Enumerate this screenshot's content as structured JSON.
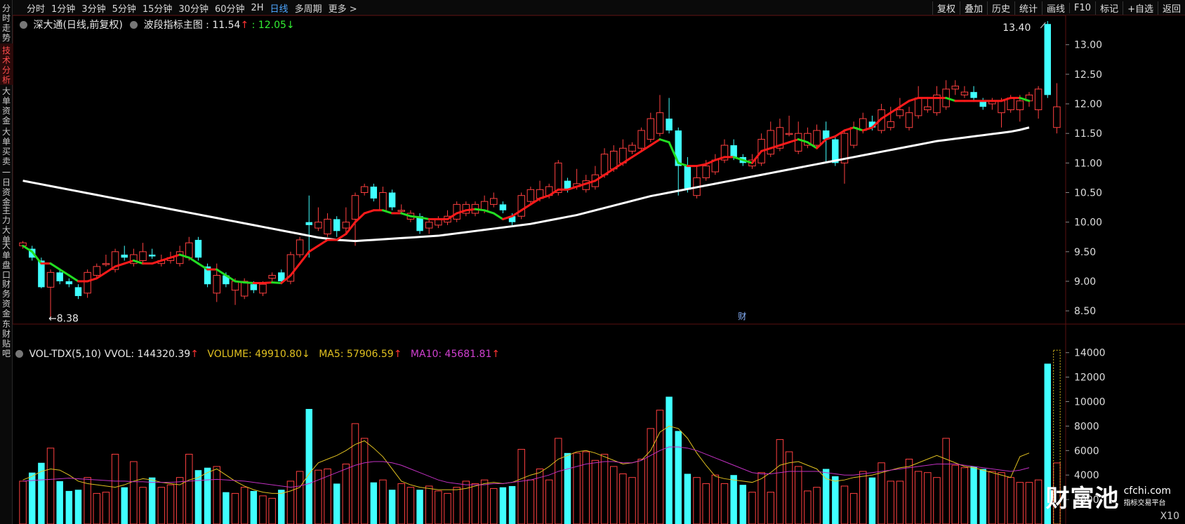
{
  "sidebar": {
    "items": [
      {
        "label": "分时走势",
        "active": false
      },
      {
        "label": "技术分析",
        "active": true
      },
      {
        "label": "大单资金",
        "active": false
      },
      {
        "label": "大单买卖",
        "active": false
      },
      {
        "label": "一日资金",
        "active": false
      },
      {
        "label": "主力大单",
        "active": false
      },
      {
        "label": "大单盘口",
        "active": false
      },
      {
        "label": "财务资金",
        "active": false
      },
      {
        "label": "东财贴吧",
        "active": false
      }
    ]
  },
  "toolbar": {
    "periods": [
      "分时",
      "1分钟",
      "3分钟",
      "5分钟",
      "15分钟",
      "30分钟",
      "60分钟",
      "2H",
      "日线",
      "多周期",
      "更多 >"
    ],
    "active_period": "日线",
    "tools": [
      "复权",
      "叠加",
      "历史",
      "统计",
      "画线",
      "F10",
      "标记",
      "+自选",
      "返回"
    ]
  },
  "main_legend": {
    "stock": "深大通(日线,前复权)",
    "indicator": "波段指标主图 :",
    "value1": "11.54",
    "arrow1": "↑",
    "value2": ": 12.05",
    "arrow2": "↓"
  },
  "volume_legend": {
    "name": "VOL-TDX(5,10)",
    "vvol": "VVOL: 144320.39",
    "vvol_arrow": "↑",
    "volume": "VOLUME: 49910.80",
    "volume_arrow": "↓",
    "ma5": "MA5: 57906.59",
    "ma5_arrow": "↑",
    "ma10": "MA10: 45681.81",
    "ma10_arrow": "↑"
  },
  "price_axis": {
    "ticks": [
      "13.00",
      "12.50",
      "12.00",
      "11.50",
      "11.00",
      "10.50",
      "10.00",
      "9.50",
      "9.00",
      "8.50"
    ]
  },
  "volume_axis": {
    "ticks": [
      "14000",
      "12000",
      "10000",
      "8000",
      "6000",
      "4000",
      "2000"
    ]
  },
  "annotations": {
    "high_label": "13.40",
    "low_label": "←8.38",
    "finance_marker": "财"
  },
  "watermark": {
    "main": "财富池",
    "url": "cfchi.com",
    "slogan": "指标交易平台"
  },
  "volume_unit": "X10",
  "colors": {
    "up": "#ff4040",
    "down": "#40ffff",
    "wave_up": "#ff1a1a",
    "wave_down": "#22dd22",
    "long_ma": "#ffffff",
    "vol_ma5": "#e0c020",
    "vol_ma10": "#c030c0",
    "grid": "#5a1010"
  },
  "chart_data": {
    "type": "candlestick",
    "price_range": [
      8.3,
      13.4
    ],
    "volume_range": [
      0,
      14500
    ],
    "candles": [
      [
        9.6,
        9.65,
        9.55,
        9.68,
        3500
      ],
      [
        9.55,
        9.4,
        9.35,
        9.6,
        4200
      ],
      [
        9.35,
        8.9,
        8.88,
        9.4,
        5000
      ],
      [
        8.9,
        9.15,
        8.38,
        9.2,
        6200
      ],
      [
        9.15,
        9.0,
        8.95,
        9.2,
        3500
      ],
      [
        9.0,
        8.95,
        8.9,
        9.05,
        2700
      ],
      [
        8.9,
        8.75,
        8.7,
        8.95,
        2800
      ],
      [
        8.8,
        9.15,
        8.72,
        9.2,
        3800
      ],
      [
        9.1,
        9.25,
        9.05,
        9.3,
        2500
      ],
      [
        9.3,
        9.3,
        9.25,
        9.45,
        2600
      ],
      [
        9.2,
        9.5,
        9.15,
        9.55,
        5700
      ],
      [
        9.45,
        9.4,
        9.35,
        9.6,
        3000
      ],
      [
        9.3,
        9.45,
        9.25,
        9.55,
        5100
      ],
      [
        9.35,
        9.5,
        9.3,
        9.65,
        3000
      ],
      [
        9.45,
        9.42,
        9.38,
        9.55,
        3800
      ],
      [
        9.3,
        9.35,
        9.25,
        9.45,
        3000
      ],
      [
        9.35,
        9.4,
        9.3,
        9.5,
        3200
      ],
      [
        9.3,
        9.5,
        9.25,
        9.6,
        3800
      ],
      [
        9.4,
        9.65,
        9.35,
        9.75,
        5700
      ],
      [
        9.7,
        9.4,
        9.35,
        9.75,
        4400
      ],
      [
        9.25,
        8.95,
        8.9,
        9.3,
        4600
      ],
      [
        8.8,
        9.1,
        8.65,
        9.3,
        4700
      ],
      [
        9.1,
        8.95,
        8.9,
        9.15,
        2600
      ],
      [
        8.85,
        9.0,
        8.6,
        9.05,
        2500
      ],
      [
        8.75,
        9.0,
        8.7,
        9.05,
        3000
      ],
      [
        8.95,
        8.85,
        8.8,
        9.0,
        2700
      ],
      [
        8.8,
        8.95,
        8.75,
        9.0,
        2300
      ],
      [
        9.05,
        9.1,
        9.0,
        9.15,
        2100
      ],
      [
        9.15,
        9.0,
        8.95,
        9.2,
        2800
      ],
      [
        9.0,
        9.45,
        8.95,
        9.5,
        3500
      ],
      [
        9.45,
        9.7,
        9.4,
        9.75,
        4300
      ],
      [
        10.0,
        9.95,
        9.4,
        10.45,
        9400
      ],
      [
        9.9,
        10.0,
        9.85,
        10.25,
        4400
      ],
      [
        9.8,
        10.05,
        9.75,
        10.15,
        4500
      ],
      [
        10.05,
        9.85,
        9.75,
        10.1,
        3300
      ],
      [
        9.9,
        10.0,
        9.8,
        10.25,
        4900
      ],
      [
        10.05,
        10.45,
        9.6,
        10.5,
        8200
      ],
      [
        10.5,
        10.6,
        10.45,
        10.65,
        7000
      ],
      [
        10.6,
        10.4,
        10.35,
        10.65,
        3400
      ],
      [
        10.2,
        10.5,
        10.2,
        10.6,
        3600
      ],
      [
        10.5,
        10.25,
        10.2,
        10.55,
        2800
      ],
      [
        10.2,
        10.2,
        10.15,
        10.3,
        3300
      ],
      [
        10.05,
        10.15,
        10.0,
        10.2,
        3000
      ],
      [
        10.1,
        9.85,
        9.8,
        10.15,
        2800
      ],
      [
        9.9,
        10.0,
        9.8,
        10.05,
        3100
      ],
      [
        9.95,
        10.05,
        9.9,
        10.1,
        2700
      ],
      [
        10.0,
        10.1,
        9.95,
        10.2,
        2500
      ],
      [
        10.05,
        10.3,
        10.0,
        10.35,
        3000
      ],
      [
        10.15,
        10.3,
        10.1,
        10.35,
        3500
      ],
      [
        10.15,
        10.3,
        10.1,
        10.35,
        3300
      ],
      [
        10.2,
        10.35,
        10.15,
        10.45,
        3600
      ],
      [
        10.3,
        10.4,
        10.25,
        10.5,
        2900
      ],
      [
        10.3,
        10.2,
        10.15,
        10.35,
        3000
      ],
      [
        10.1,
        10.0,
        9.95,
        10.15,
        3100
      ],
      [
        10.1,
        10.45,
        10.05,
        10.5,
        6100
      ],
      [
        10.35,
        10.55,
        10.3,
        10.6,
        3600
      ],
      [
        10.4,
        10.55,
        10.35,
        10.7,
        4500
      ],
      [
        10.45,
        10.6,
        10.4,
        10.65,
        3600
      ],
      [
        10.5,
        11.0,
        10.45,
        11.05,
        7000
      ],
      [
        10.7,
        10.55,
        10.5,
        10.75,
        5800
      ],
      [
        10.6,
        10.65,
        10.55,
        10.9,
        5800
      ],
      [
        10.55,
        10.7,
        10.5,
        10.8,
        5900
      ],
      [
        10.6,
        10.8,
        10.55,
        10.95,
        5200
      ],
      [
        10.8,
        11.15,
        10.75,
        11.25,
        5700
      ],
      [
        10.9,
        11.2,
        10.85,
        11.3,
        4700
      ],
      [
        11.0,
        11.25,
        10.95,
        11.4,
        4100
      ],
      [
        11.2,
        11.3,
        11.15,
        11.35,
        3800
      ],
      [
        11.25,
        11.55,
        11.2,
        11.6,
        5300
      ],
      [
        11.4,
        11.75,
        11.35,
        11.85,
        7800
      ],
      [
        11.5,
        11.85,
        11.45,
        12.15,
        9300
      ],
      [
        11.75,
        11.55,
        11.5,
        12.1,
        10400
      ],
      [
        11.55,
        10.95,
        10.45,
        11.6,
        7600
      ],
      [
        10.95,
        10.55,
        10.5,
        11.1,
        4100
      ],
      [
        10.45,
        10.75,
        10.4,
        10.95,
        3800
      ],
      [
        10.75,
        10.95,
        10.7,
        11.05,
        3300
      ],
      [
        10.85,
        11.05,
        10.8,
        11.15,
        4000
      ],
      [
        11.05,
        11.3,
        11.0,
        11.4,
        3300
      ],
      [
        11.3,
        11.1,
        11.05,
        11.4,
        4000
      ],
      [
        11.1,
        11.0,
        10.95,
        11.15,
        3200
      ],
      [
        10.95,
        11.05,
        10.9,
        11.15,
        2600
      ],
      [
        11.0,
        11.4,
        10.95,
        11.5,
        4200
      ],
      [
        11.15,
        11.55,
        11.1,
        11.7,
        2600
      ],
      [
        11.25,
        11.6,
        11.2,
        11.75,
        6900
      ],
      [
        11.5,
        11.5,
        11.45,
        11.8,
        5900
      ],
      [
        11.2,
        11.5,
        11.15,
        11.7,
        4700
      ],
      [
        11.3,
        11.5,
        11.25,
        11.6,
        2700
      ],
      [
        11.3,
        11.55,
        11.25,
        11.65,
        3000
      ],
      [
        11.55,
        11.4,
        11.0,
        11.7,
        4500
      ],
      [
        11.4,
        11.0,
        10.95,
        11.45,
        3900
      ],
      [
        11.0,
        11.5,
        10.65,
        11.55,
        3100
      ],
      [
        11.3,
        11.6,
        11.25,
        11.7,
        2500
      ],
      [
        11.55,
        11.75,
        11.5,
        11.85,
        4300
      ],
      [
        11.7,
        11.6,
        11.55,
        11.8,
        3800
      ],
      [
        11.55,
        11.9,
        11.5,
        12.0,
        5000
      ],
      [
        11.6,
        11.7,
        11.55,
        11.95,
        3500
      ],
      [
        11.8,
        11.9,
        11.75,
        12.1,
        3500
      ],
      [
        11.6,
        11.85,
        11.55,
        11.95,
        5300
      ],
      [
        11.8,
        12.1,
        11.75,
        12.3,
        4300
      ],
      [
        11.9,
        11.95,
        11.85,
        12.1,
        4200
      ],
      [
        11.85,
        12.15,
        11.8,
        12.3,
        3800
      ],
      [
        11.95,
        12.25,
        11.9,
        12.4,
        7000
      ],
      [
        12.25,
        12.3,
        12.15,
        12.4,
        4800
      ],
      [
        12.15,
        12.2,
        12.1,
        12.3,
        4600
      ],
      [
        12.2,
        12.1,
        12.05,
        12.3,
        4700
      ],
      [
        12.05,
        11.95,
        11.9,
        12.1,
        4500
      ],
      [
        12.0,
        12.05,
        11.9,
        12.1,
        4300
      ],
      [
        11.85,
        12.05,
        11.6,
        12.1,
        4200
      ],
      [
        11.9,
        12.1,
        11.85,
        12.15,
        3800
      ],
      [
        11.9,
        12.05,
        11.7,
        12.15,
        3400
      ],
      [
        12.05,
        12.15,
        11.95,
        12.2,
        3400
      ],
      [
        11.9,
        12.25,
        11.75,
        12.3,
        3600
      ],
      [
        13.35,
        12.15,
        12.1,
        13.4,
        13100
      ],
      [
        11.6,
        11.95,
        11.5,
        12.35,
        4990
      ]
    ],
    "wave_line": [
      9.6,
      9.5,
      9.3,
      9.3,
      9.2,
      9.1,
      9.0,
      9.0,
      9.05,
      9.15,
      9.25,
      9.3,
      9.35,
      9.3,
      9.3,
      9.35,
      9.4,
      9.45,
      9.4,
      9.3,
      9.2,
      9.2,
      9.1,
      9.0,
      8.98,
      8.97,
      8.97,
      8.98,
      8.97,
      9.1,
      9.3,
      9.5,
      9.6,
      9.7,
      9.7,
      9.8,
      10.0,
      10.15,
      10.2,
      10.2,
      10.15,
      10.15,
      10.1,
      10.08,
      10.05,
      10.05,
      10.05,
      10.15,
      10.2,
      10.22,
      10.2,
      10.15,
      10.05,
      10.1,
      10.2,
      10.3,
      10.4,
      10.45,
      10.55,
      10.55,
      10.6,
      10.65,
      10.7,
      10.8,
      10.9,
      11.0,
      11.1,
      11.2,
      11.3,
      11.4,
      11.35,
      11.0,
      10.95,
      10.95,
      10.98,
      11.05,
      11.1,
      11.1,
      11.05,
      11.0,
      11.2,
      11.25,
      11.3,
      11.35,
      11.4,
      11.35,
      11.25,
      11.4,
      11.45,
      11.55,
      11.6,
      11.55,
      11.6,
      11.75,
      11.85,
      11.95,
      12.05,
      12.1,
      12.1,
      12.1,
      12.1,
      12.05,
      12.05,
      12.05,
      12.05,
      12.05,
      12.05,
      12.1,
      12.1,
      12.05
    ],
    "long_ma": [
      10.7,
      10.67,
      10.64,
      10.61,
      10.58,
      10.55,
      10.52,
      10.49,
      10.46,
      10.43,
      10.4,
      10.37,
      10.34,
      10.31,
      10.28,
      10.25,
      10.22,
      10.19,
      10.16,
      10.13,
      10.1,
      10.07,
      10.04,
      10.01,
      9.98,
      9.95,
      9.92,
      9.89,
      9.86,
      9.83,
      9.8,
      9.77,
      9.74,
      9.72,
      9.7,
      9.69,
      9.68,
      9.69,
      9.7,
      9.71,
      9.72,
      9.73,
      9.74,
      9.75,
      9.76,
      9.77,
      9.79,
      9.81,
      9.83,
      9.85,
      9.87,
      9.89,
      9.91,
      9.93,
      9.95,
      9.97,
      10.0,
      10.03,
      10.06,
      10.09,
      10.12,
      10.16,
      10.2,
      10.24,
      10.28,
      10.32,
      10.36,
      10.4,
      10.44,
      10.47,
      10.5,
      10.53,
      10.56,
      10.59,
      10.62,
      10.65,
      10.68,
      10.71,
      10.74,
      10.77,
      10.8,
      10.83,
      10.86,
      10.89,
      10.92,
      10.95,
      10.98,
      11.01,
      11.04,
      11.07,
      11.1,
      11.13,
      11.16,
      11.19,
      11.22,
      11.25,
      11.28,
      11.31,
      11.34,
      11.37,
      11.39,
      11.41,
      11.43,
      11.45,
      11.47,
      11.49,
      11.51,
      11.53,
      11.56,
      11.6
    ],
    "vol_ma5": [
      3600,
      3900,
      4300,
      4500,
      4400,
      4000,
      3500,
      3300,
      3200,
      3100,
      3000,
      3200,
      3500,
      3700,
      3600,
      3400,
      3300,
      3200,
      3600,
      3800,
      4200,
      4500,
      4000,
      3500,
      3100,
      2800,
      2600,
      2500,
      2500,
      2700,
      3000,
      4100,
      5000,
      5300,
      5600,
      6000,
      6500,
      6800,
      6200,
      5500,
      4500,
      3500,
      3200,
      3000,
      2900,
      2800,
      2800,
      2800,
      2900,
      3100,
      3300,
      3400,
      3300,
      3400,
      3700,
      4000,
      4200,
      4700,
      5300,
      5600,
      5900,
      6000,
      5800,
      5500,
      5200,
      4900,
      5000,
      5200,
      6000,
      7500,
      8000,
      7800,
      7000,
      5800,
      4800,
      3900,
      3700,
      3600,
      3500,
      3400,
      3700,
      4200,
      4800,
      5000,
      5100,
      4800,
      4500,
      3700,
      3500,
      3600,
      3800,
      3900,
      4000,
      4200,
      4400,
      4600,
      4700,
      5000,
      5300,
      5600,
      5300,
      5000,
      4700,
      4600,
      4400,
      4200,
      4000,
      3800,
      5500,
      5800
    ],
    "vol_ma10": [
      3500,
      3550,
      3600,
      3650,
      3700,
      3750,
      3700,
      3650,
      3600,
      3550,
      3500,
      3500,
      3450,
      3450,
      3400,
      3400,
      3400,
      3450,
      3500,
      3550,
      3600,
      3650,
      3600,
      3550,
      3500,
      3400,
      3300,
      3200,
      3100,
      3000,
      3100,
      3300,
      3600,
      3900,
      4200,
      4500,
      4800,
      5000,
      5100,
      5100,
      5000,
      4800,
      4500,
      4200,
      3900,
      3600,
      3400,
      3300,
      3200,
      3200,
      3200,
      3300,
      3300,
      3400,
      3500,
      3600,
      3800,
      4000,
      4300,
      4500,
      4700,
      4900,
      5000,
      5100,
      5100,
      5000,
      5000,
      5200,
      5600,
      6000,
      6300,
      6300,
      6200,
      6000,
      5700,
      5400,
      5100,
      4800,
      4500,
      4200,
      4100,
      4100,
      4200,
      4300,
      4300,
      4300,
      4300,
      4200,
      4100,
      4000,
      4000,
      4100,
      4200,
      4300,
      4400,
      4500,
      4600,
      4700,
      4800,
      4900,
      4900,
      4900,
      4800,
      4700,
      4600,
      4500,
      4400,
      4300,
      4400,
      4600
    ]
  }
}
